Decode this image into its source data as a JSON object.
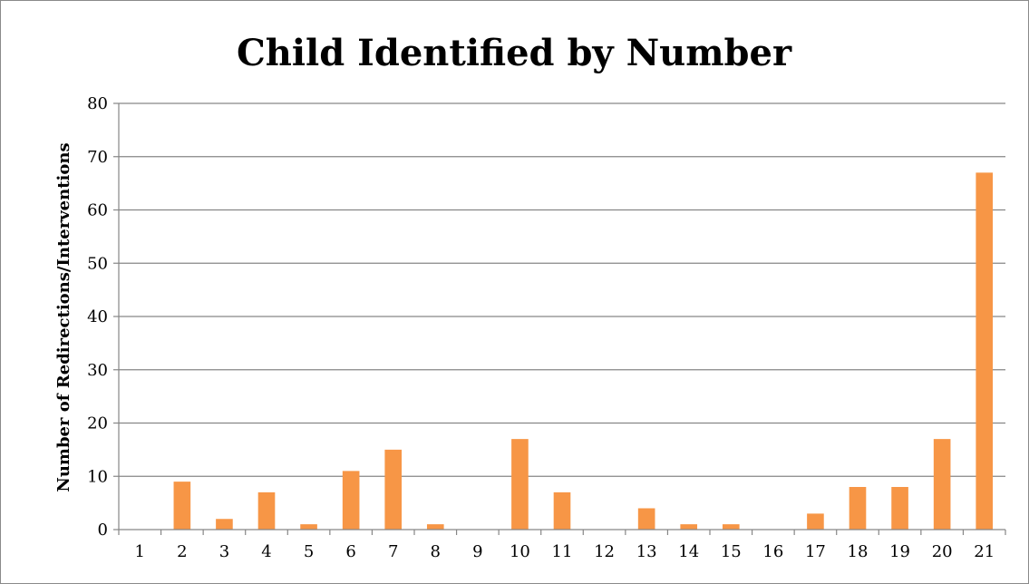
{
  "chart_data": {
    "type": "bar",
    "title": "Child Identified by Number",
    "xlabel": "",
    "ylabel": "Number of Redirections/Interventions",
    "categories": [
      "1",
      "2",
      "3",
      "4",
      "5",
      "6",
      "7",
      "8",
      "9",
      "10",
      "11",
      "12",
      "13",
      "14",
      "15",
      "16",
      "17",
      "18",
      "19",
      "20",
      "21"
    ],
    "values": [
      0,
      9,
      2,
      7,
      1,
      11,
      15,
      1,
      0,
      17,
      7,
      0,
      4,
      1,
      1,
      0,
      3,
      8,
      8,
      17,
      67
    ],
    "ylim": [
      0,
      80
    ],
    "yticks": [
      0,
      10,
      20,
      30,
      40,
      50,
      60,
      70,
      80
    ],
    "grid": true,
    "legend": "none",
    "bar_color": "#F79646",
    "grid_color": "#868686"
  }
}
